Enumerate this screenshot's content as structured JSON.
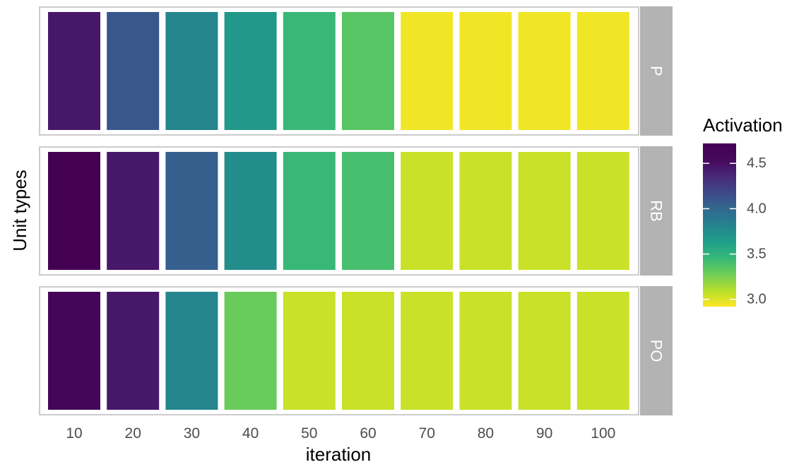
{
  "chart_data": {
    "type": "heatmap",
    "xlabel": "iteration",
    "ylabel": "Unit types",
    "categories": [
      "10",
      "20",
      "30",
      "40",
      "50",
      "60",
      "70",
      "80",
      "90",
      "100"
    ],
    "series": [
      {
        "name": "P",
        "values": [
          4.45,
          4.1,
          3.8,
          3.68,
          3.45,
          3.35,
          2.95,
          2.95,
          2.95,
          2.95
        ]
      },
      {
        "name": "RB",
        "values": [
          4.72,
          4.45,
          4.05,
          3.75,
          3.45,
          3.4,
          3.05,
          3.05,
          3.05,
          3.05
        ]
      },
      {
        "name": "PO",
        "values": [
          4.6,
          4.45,
          3.8,
          3.3,
          3.05,
          3.05,
          3.05,
          3.05,
          3.05,
          3.05
        ]
      }
    ],
    "legend": {
      "title": "Activation",
      "position": "right",
      "range": [
        2.92,
        4.72
      ],
      "ticks": [
        4.5,
        4.0,
        3.5,
        3.0
      ],
      "tick_labels": [
        "4.5",
        "4.0",
        "3.5",
        "3.0"
      ]
    },
    "colormap": "viridis",
    "grid": false
  }
}
